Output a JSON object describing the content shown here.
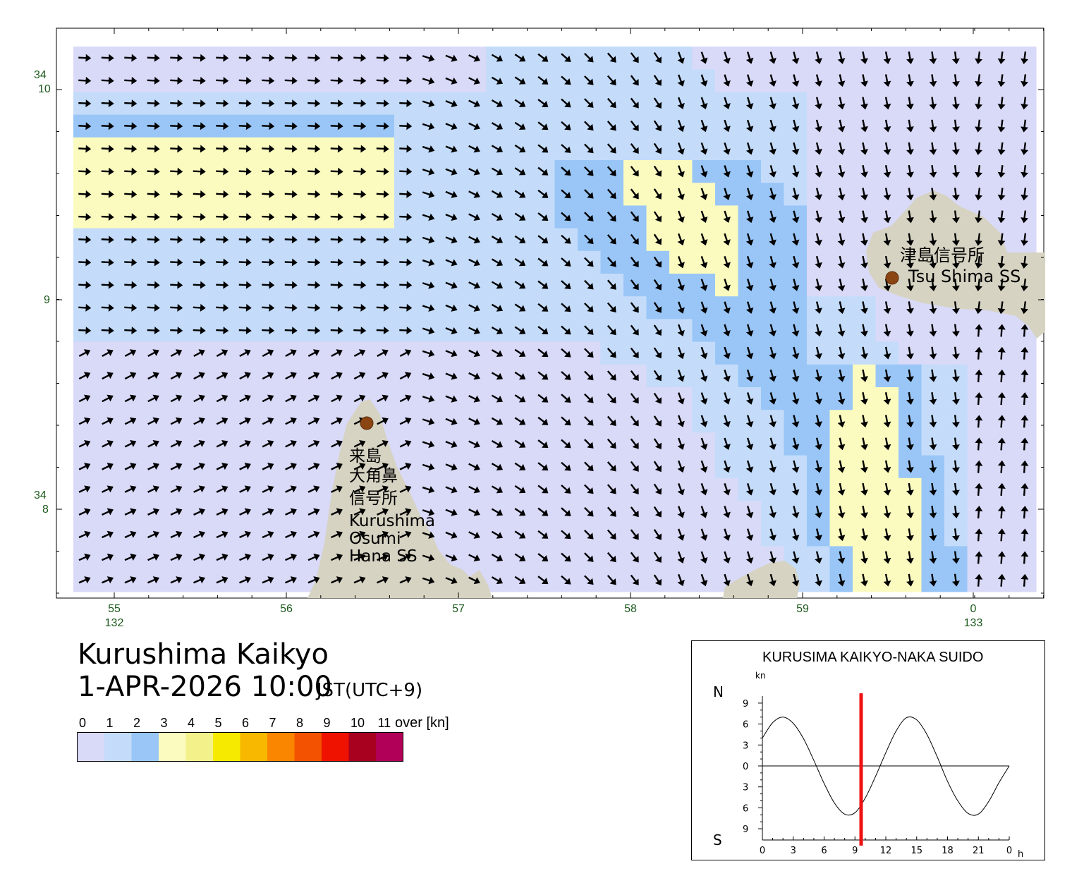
{
  "map": {
    "lat_labels": [
      {
        "deg": "34",
        "min": "10"
      },
      {
        "deg": "",
        "min": "9"
      },
      {
        "deg": "34",
        "min": "8"
      }
    ],
    "lon_labels": [
      {
        "min": "55",
        "deg": "132"
      },
      {
        "min": "56",
        "deg": ""
      },
      {
        "min": "57",
        "deg": ""
      },
      {
        "min": "58",
        "deg": ""
      },
      {
        "min": "59",
        "deg": ""
      },
      {
        "min": "0",
        "deg": "133"
      }
    ],
    "stations": [
      {
        "label_lines": [
          "津島信号所",
          "Tsu Shima SS"
        ]
      },
      {
        "label_lines": [
          "来島",
          "大角鼻",
          "信号所",
          "Kurushima",
          "Osumi",
          "Hana SS"
        ]
      }
    ],
    "colors": {
      "land": "#d6d3c2",
      "station": "#8b4513",
      "latlon_text": "#1d5a1d"
    }
  },
  "title": {
    "name": "Kurushima Kaikyo",
    "datetime": "1-APR-2026 10:00",
    "timezone": "JST(UTC+9)"
  },
  "legend": {
    "ticks": [
      "0",
      "1",
      "2",
      "3",
      "4",
      "5",
      "6",
      "7",
      "8",
      "9",
      "10",
      "11"
    ],
    "unit": "over [kn]",
    "colors": [
      "#d9d9f8",
      "#c4dcfa",
      "#99c6f7",
      "#fbfbc0",
      "#f3f18a",
      "#f5ea00",
      "#f9b800",
      "#fa8600",
      "#f35200",
      "#ef1200",
      "#a8001f",
      "#b00058"
    ]
  },
  "tide_chart": {
    "title": "KURUSIMA KAIKYO-NAKA SUIDO",
    "unit": "kn",
    "north_label": "N",
    "south_label": "S",
    "hour_unit": "h",
    "y_ticks": [
      "9",
      "6",
      "3",
      "0",
      "3",
      "6",
      "9"
    ],
    "x_ticks": [
      "0",
      "3",
      "6",
      "9",
      "12",
      "15",
      "18",
      "21",
      "0"
    ]
  },
  "chart_data": {
    "type": "line",
    "title": "KURUSIMA KAIKYO-NAKA SUIDO",
    "xlabel": "h",
    "ylabel": "kn",
    "xlim": [
      0,
      24
    ],
    "ylim": [
      -10,
      10
    ],
    "current_hour": 9.6,
    "series": [
      {
        "x": [
          0,
          1,
          2,
          3,
          4,
          5,
          6,
          7,
          8,
          9,
          10,
          11,
          12,
          13,
          14,
          15,
          16,
          17,
          18,
          19,
          20,
          21,
          22,
          23,
          24
        ],
        "values": [
          4.0,
          6.2,
          7.0,
          6.1,
          3.9,
          0.8,
          -2.5,
          -5.3,
          -6.9,
          -6.7,
          -4.6,
          -1.5,
          1.9,
          5.0,
          6.9,
          6.6,
          4.5,
          1.3,
          -2.2,
          -5.0,
          -6.8,
          -6.9,
          -5.1,
          -2.4,
          0.0
        ]
      }
    ]
  }
}
